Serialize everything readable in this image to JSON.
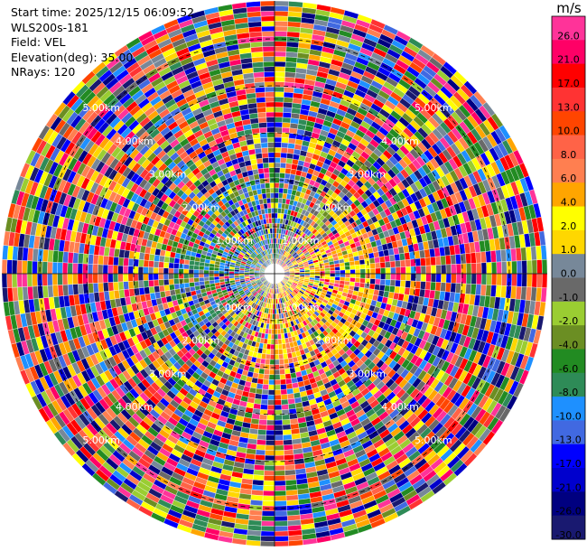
{
  "header": {
    "start_time": "Start time: 2025/12/15 06:09:52",
    "station": "WLS200s-181",
    "field": "Field: VEL",
    "elevation": "Elevation(deg): 35.00",
    "nrays": "NRays: 120"
  },
  "range_rings": {
    "labels": [
      "1.00km",
      "2.00km",
      "3.00km",
      "4.00km",
      "5.00km"
    ],
    "ring_km": [
      1,
      2,
      3,
      4,
      5
    ]
  },
  "colorbar": {
    "unit": "m/s",
    "bins": [
      {
        "label": "26.0",
        "color": "#ff3399"
      },
      {
        "label": "21.0",
        "color": "#ff0066"
      },
      {
        "label": "17.0",
        "color": "#ff0000"
      },
      {
        "label": "13.0",
        "color": "#ff3333"
      },
      {
        "label": "10.0",
        "color": "#ff4500"
      },
      {
        "label": "8.0",
        "color": "#ff6347"
      },
      {
        "label": "6.0",
        "color": "#ff7f50"
      },
      {
        "label": "4.0",
        "color": "#ffa500"
      },
      {
        "label": "2.0",
        "color": "#ffff00"
      },
      {
        "label": "1.0",
        "color": "#ffd700"
      },
      {
        "label": "0.0",
        "color": "#778899"
      },
      {
        "label": "-1.0",
        "color": "#696969"
      },
      {
        "label": "-2.0",
        "color": "#9acd32"
      },
      {
        "label": "-4.0",
        "color": "#6b8e23"
      },
      {
        "label": "-6.0",
        "color": "#228b22"
      },
      {
        "label": "-8.0",
        "color": "#2e8b57"
      },
      {
        "label": "-10.0",
        "color": "#1e90ff"
      },
      {
        "label": "-13.0",
        "color": "#4169e1"
      },
      {
        "label": "-17.0",
        "color": "#0000ff"
      },
      {
        "label": "-21.0",
        "color": "#0000cd"
      },
      {
        "label": "-26.0",
        "color": "#000080"
      },
      {
        "label": "-30.0",
        "color": "#191970"
      }
    ]
  }
}
